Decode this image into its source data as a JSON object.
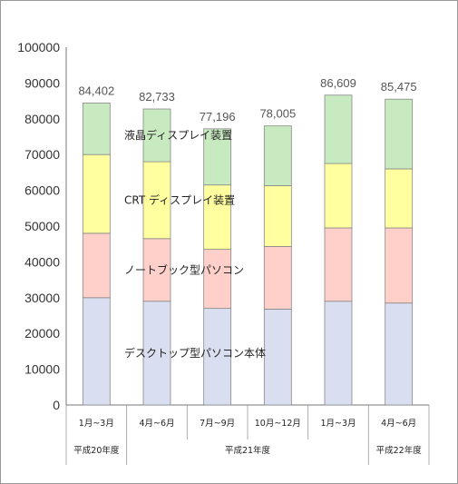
{
  "chart_data": {
    "type": "bar",
    "stacked": true,
    "categories": [
      "1月~3月",
      "4月~6月",
      "7月~9月",
      "10月~12月",
      "1月~3月",
      "4月~6月"
    ],
    "periods": [
      {
        "label": "平成20年度",
        "span": 1
      },
      {
        "label": "平成21年度",
        "span": 4
      },
      {
        "label": "平成22年度",
        "span": 1
      }
    ],
    "series": [
      {
        "name": "デスクトップ型パソコン本体",
        "color": "#d9dff0",
        "values": [
          30000,
          29000,
          27000,
          26800,
          29000,
          28500
        ]
      },
      {
        "name": "ノートブック型パソコン",
        "color": "#ffcfc9",
        "values": [
          18000,
          17500,
          16500,
          17500,
          20500,
          21000
        ]
      },
      {
        "name": "CRT ディスプレイ装置",
        "color": "#ffffa0",
        "values": [
          22000,
          21500,
          18000,
          17000,
          18000,
          16500
        ]
      },
      {
        "name": "液晶ディスプレイ装置",
        "color": "#c8eac0",
        "values": [
          14402,
          14733,
          15696,
          16705,
          19109,
          19475
        ]
      }
    ],
    "totals": [
      "84,402",
      "82,733",
      "77,196",
      "78,005",
      "86,609",
      "85,475"
    ],
    "yticks": [
      "100000",
      "90000",
      "80000",
      "70000",
      "60000",
      "50000",
      "40000",
      "30000",
      "20000",
      "10000",
      "0"
    ],
    "ylim": [
      0,
      100000
    ],
    "grid": false,
    "legend": "inline labels on bars"
  }
}
